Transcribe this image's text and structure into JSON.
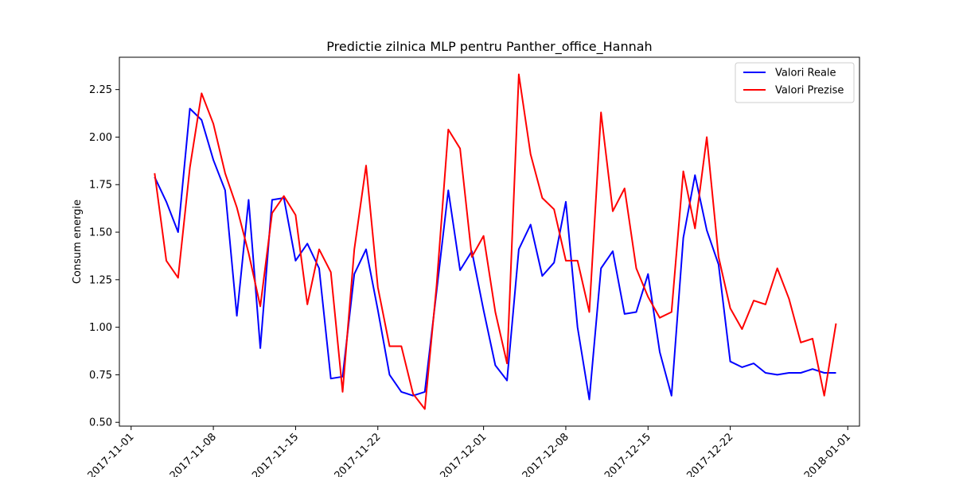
{
  "chart_data": {
    "type": "line",
    "title": "Predictie zilnica MLP pentru Panther_office_Hannah",
    "xlabel": "",
    "ylabel": "Consum energie",
    "xlim": [
      "2017-10-31",
      "2018-01-02"
    ],
    "ylim": [
      0.48,
      2.42
    ],
    "x_ticks": [
      "2017-11-01",
      "2017-11-08",
      "2017-11-15",
      "2017-11-22",
      "2017-12-01",
      "2017-12-08",
      "2017-12-15",
      "2017-12-22",
      "2018-01-01"
    ],
    "y_ticks": [
      "0.50",
      "0.75",
      "1.00",
      "1.25",
      "1.50",
      "1.75",
      "2.00",
      "2.25"
    ],
    "grid": false,
    "legend_position": "top-right",
    "x": [
      "2017-11-03",
      "2017-11-04",
      "2017-11-05",
      "2017-11-06",
      "2017-11-07",
      "2017-11-08",
      "2017-11-09",
      "2017-11-10",
      "2017-11-11",
      "2017-11-12",
      "2017-11-13",
      "2017-11-14",
      "2017-11-15",
      "2017-11-16",
      "2017-11-17",
      "2017-11-18",
      "2017-11-19",
      "2017-11-20",
      "2017-11-21",
      "2017-11-22",
      "2017-11-23",
      "2017-11-24",
      "2017-11-25",
      "2017-11-26",
      "2017-11-27",
      "2017-11-28",
      "2017-11-29",
      "2017-11-30",
      "2017-12-01",
      "2017-12-02",
      "2017-12-03",
      "2017-12-04",
      "2017-12-05",
      "2017-12-06",
      "2017-12-07",
      "2017-12-08",
      "2017-12-09",
      "2017-12-10",
      "2017-12-11",
      "2017-12-12",
      "2017-12-13",
      "2017-12-14",
      "2017-12-15",
      "2017-12-16",
      "2017-12-17",
      "2017-12-18",
      "2017-12-19",
      "2017-12-20",
      "2017-12-21",
      "2017-12-22",
      "2017-12-23",
      "2017-12-24",
      "2017-12-25",
      "2017-12-26",
      "2017-12-27",
      "2017-12-28",
      "2017-12-29",
      "2017-12-30",
      "2017-12-31",
      "2018-01-01"
    ],
    "series": [
      {
        "name": "Valori Reale",
        "color": "#0000ff",
        "values": [
          1.79,
          1.66,
          1.5,
          2.15,
          2.09,
          1.88,
          1.72,
          1.06,
          1.67,
          0.89,
          1.67,
          1.68,
          1.35,
          1.44,
          1.31,
          0.73,
          0.74,
          1.28,
          1.41,
          1.09,
          0.75,
          0.66,
          0.64,
          0.66,
          1.19,
          1.72,
          1.3,
          1.4,
          1.09,
          0.8,
          0.72,
          1.41,
          1.54,
          1.27,
          1.34,
          1.66,
          1.0,
          0.62,
          1.31,
          1.4,
          1.07,
          1.08,
          1.28,
          0.87,
          0.64,
          1.47,
          1.8,
          1.51,
          1.33,
          0.82,
          0.79,
          0.81,
          0.76,
          0.75,
          0.76,
          0.76,
          0.78,
          0.76,
          0.76,
          null
        ]
      },
      {
        "name": "Valori Prezise",
        "color": "#ff0000",
        "values": [
          1.81,
          1.35,
          1.26,
          1.84,
          2.23,
          2.07,
          1.81,
          1.63,
          1.39,
          1.11,
          1.6,
          1.69,
          1.59,
          1.12,
          1.41,
          1.29,
          0.66,
          1.41,
          1.85,
          1.21,
          0.9,
          0.9,
          0.65,
          0.57,
          1.22,
          2.04,
          1.94,
          1.37,
          1.48,
          1.08,
          0.81,
          2.33,
          1.91,
          1.68,
          1.62,
          1.35,
          1.35,
          1.08,
          2.13,
          1.61,
          1.73,
          1.31,
          1.16,
          1.05,
          1.08,
          1.82,
          1.52,
          2.0,
          1.37,
          1.1,
          0.99,
          1.14,
          1.12,
          1.31,
          1.15,
          0.92,
          0.94,
          0.64,
          1.02,
          null
        ]
      }
    ]
  }
}
